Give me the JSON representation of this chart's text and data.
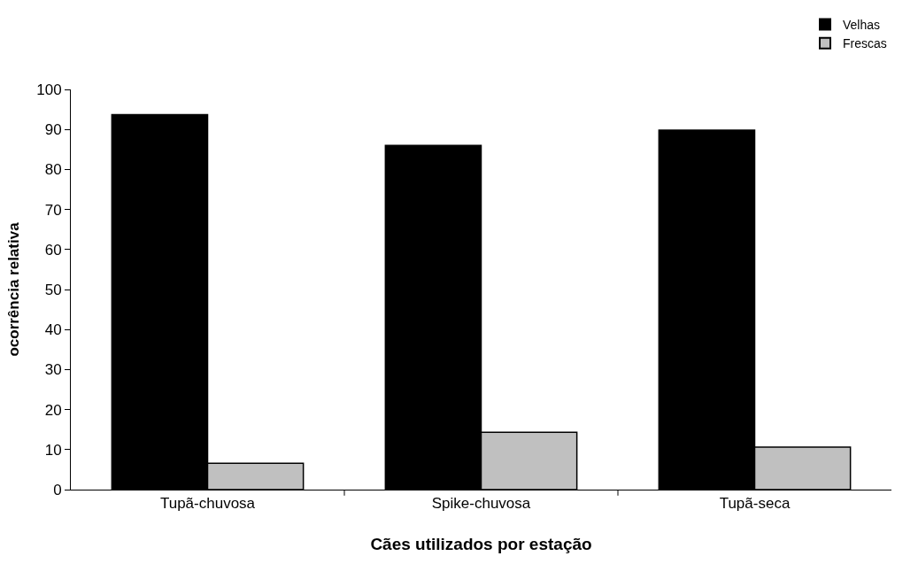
{
  "chart_data": {
    "type": "bar",
    "xlabel": "Cães utilizados por estação",
    "ylabel": "ocorrência relativa",
    "categories": [
      "Tupã-chuvosa",
      "Spike-chuvosa",
      "Tupã-seca"
    ],
    "series": [
      {
        "name": "Velhas",
        "color": "#000000",
        "values": [
          93.7,
          86.0,
          89.8
        ]
      },
      {
        "name": "Frescas",
        "color": "#c0c0c0",
        "values": [
          6.6,
          14.3,
          10.6
        ]
      }
    ],
    "ylim": [
      0,
      100
    ],
    "yticks": [
      0,
      10,
      20,
      30,
      40,
      50,
      60,
      70,
      80,
      90,
      100
    ],
    "grid": false,
    "legend": "top right"
  }
}
